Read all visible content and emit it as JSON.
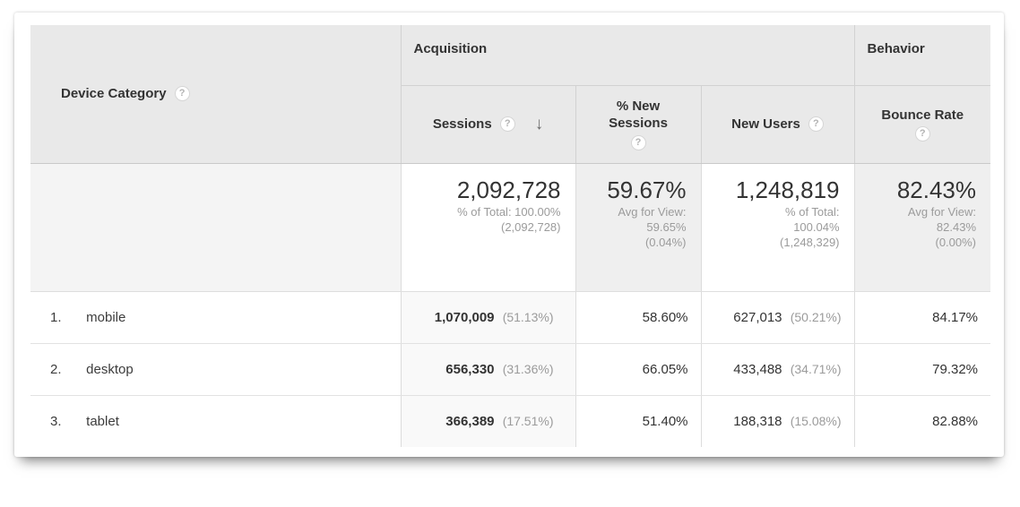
{
  "icons": {
    "help": "?",
    "sort_desc": "↓"
  },
  "table": {
    "dimension": {
      "label": "Device Category"
    },
    "group_headers": [
      {
        "label": "Acquisition"
      },
      {
        "label": "Behavior"
      }
    ],
    "columns": [
      {
        "label": "Sessions",
        "sorted": "descending"
      },
      {
        "label": "% New Sessions"
      },
      {
        "label": "New Users"
      },
      {
        "label": "Bounce Rate"
      }
    ],
    "totals": {
      "sessions": {
        "value": "2,092,728",
        "sub": [
          "% of Total: 100.00%",
          "(2,092,728)"
        ]
      },
      "pct_new_sessions": {
        "value": "59.67%",
        "sub": [
          "Avg for View:",
          "59.65%",
          "(0.04%)"
        ]
      },
      "new_users": {
        "value": "1,248,819",
        "sub": [
          "% of Total:",
          "100.04%",
          "(1,248,329)"
        ]
      },
      "bounce_rate": {
        "value": "82.43%",
        "sub": [
          "Avg for View:",
          "82.43%",
          "(0.00%)"
        ]
      }
    },
    "rows": [
      {
        "rank": "1.",
        "device": "mobile",
        "sessions": "1,070,009",
        "sessions_share": "(51.13%)",
        "pct_new_sessions": "58.60%",
        "new_users": "627,013",
        "new_users_share": "(50.21%)",
        "bounce_rate": "84.17%"
      },
      {
        "rank": "2.",
        "device": "desktop",
        "sessions": "656,330",
        "sessions_share": "(31.36%)",
        "pct_new_sessions": "66.05%",
        "new_users": "433,488",
        "new_users_share": "(34.71%)",
        "bounce_rate": "79.32%"
      },
      {
        "rank": "3.",
        "device": "tablet",
        "sessions": "366,389",
        "sessions_share": "(17.51%)",
        "pct_new_sessions": "51.40%",
        "new_users": "188,318",
        "new_users_share": "(15.08%)",
        "bounce_rate": "82.88%"
      }
    ]
  }
}
